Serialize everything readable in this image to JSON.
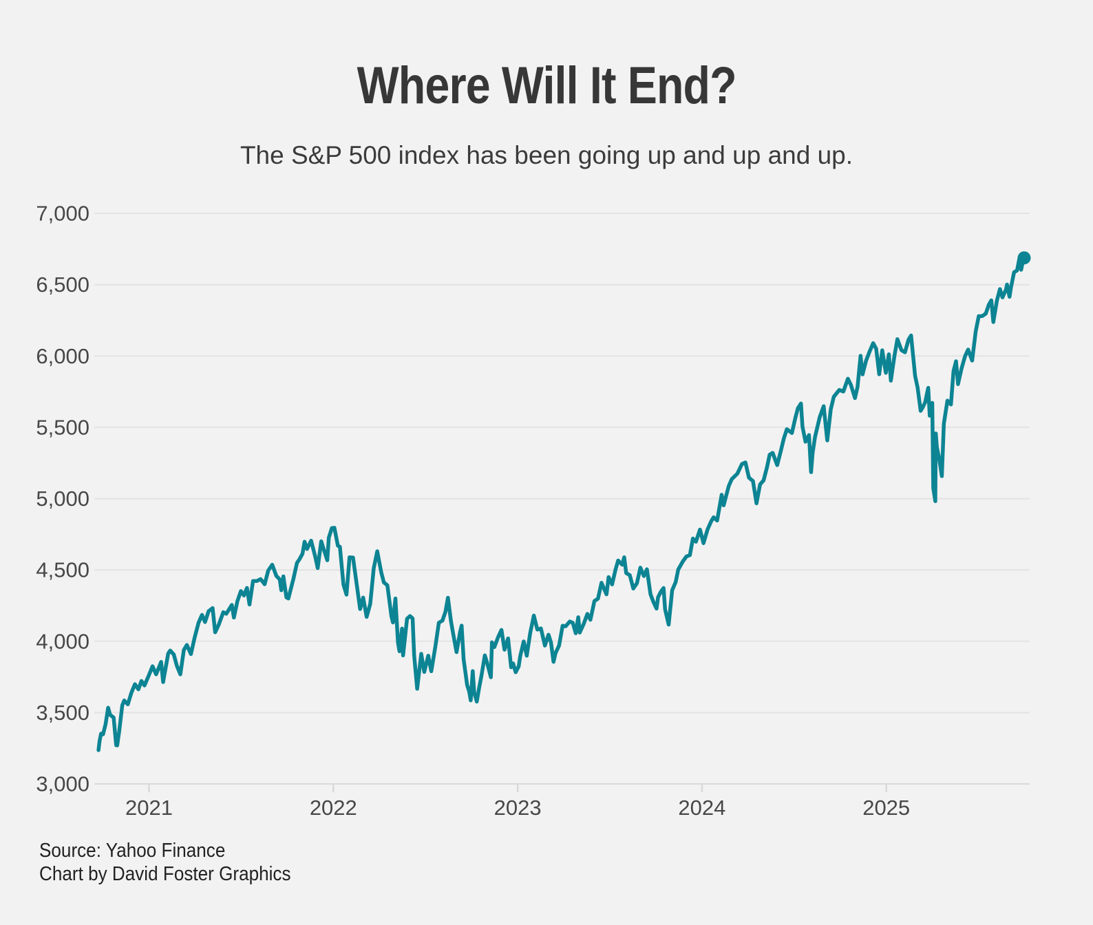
{
  "page": {
    "background_color": "#f2f2f2"
  },
  "header": {
    "title": "Where Will It End?",
    "subtitle": "The S&P 500 index has been going up and up and up."
  },
  "footer": {
    "source_line": "Source: Yahoo Finance",
    "credit_line": "Chart by David Foster Graphics"
  },
  "chart_data": {
    "type": "line",
    "title": "Where Will It End?",
    "subtitle": "The S&P 500 index has been going up and up and up.",
    "series_name": "S&P 500 index",
    "line_color": "#0d8493",
    "end_dot": true,
    "grid": true,
    "legend": false,
    "grid_color": "#e3e3e3",
    "axis_color": "#d9d9d9",
    "label_color": "#474747",
    "ylim": [
      3000,
      7000
    ],
    "x_range_dates": [
      "2020-09-23",
      "2025-10-01"
    ],
    "yticks": [
      {
        "value": 3000,
        "label": "3,000"
      },
      {
        "value": 3500,
        "label": "3,500"
      },
      {
        "value": 4000,
        "label": "4,000"
      },
      {
        "value": 4500,
        "label": "4,500"
      },
      {
        "value": 5000,
        "label": "5,000"
      },
      {
        "value": 5500,
        "label": "5,500"
      },
      {
        "value": 6000,
        "label": "6,000"
      },
      {
        "value": 6500,
        "label": "6,500"
      },
      {
        "value": 7000,
        "label": "7,000"
      }
    ],
    "xticks": [
      {
        "year": 2021,
        "label": "2021"
      },
      {
        "year": 2022,
        "label": "2022"
      },
      {
        "year": 2023,
        "label": "2023"
      },
      {
        "year": 2024,
        "label": "2024"
      },
      {
        "year": 2025,
        "label": "2025"
      }
    ],
    "points": [
      [
        "2020-09-23",
        3237
      ],
      [
        "2020-09-25",
        3298
      ],
      [
        "2020-09-28",
        3352
      ],
      [
        "2020-10-02",
        3348
      ],
      [
        "2020-10-07",
        3419
      ],
      [
        "2020-10-12",
        3534
      ],
      [
        "2020-10-16",
        3484
      ],
      [
        "2020-10-23",
        3465
      ],
      [
        "2020-10-28",
        3271
      ],
      [
        "2020-10-30",
        3270
      ],
      [
        "2020-11-03",
        3369
      ],
      [
        "2020-11-09",
        3550
      ],
      [
        "2020-11-13",
        3585
      ],
      [
        "2020-11-20",
        3558
      ],
      [
        "2020-11-27",
        3638
      ],
      [
        "2020-12-04",
        3699
      ],
      [
        "2020-12-11",
        3663
      ],
      [
        "2020-12-17",
        3722
      ],
      [
        "2020-12-23",
        3690
      ],
      [
        "2020-12-31",
        3756
      ],
      [
        "2021-01-08",
        3825
      ],
      [
        "2021-01-15",
        3768
      ],
      [
        "2021-01-25",
        3855
      ],
      [
        "2021-01-29",
        3714
      ],
      [
        "2021-02-08",
        3915
      ],
      [
        "2021-02-12",
        3935
      ],
      [
        "2021-02-19",
        3907
      ],
      [
        "2021-02-25",
        3829
      ],
      [
        "2021-03-04",
        3768
      ],
      [
        "2021-03-11",
        3939
      ],
      [
        "2021-03-17",
        3974
      ],
      [
        "2021-03-25",
        3910
      ],
      [
        "2021-04-01",
        4020
      ],
      [
        "2021-04-09",
        4129
      ],
      [
        "2021-04-16",
        4185
      ],
      [
        "2021-04-22",
        4135
      ],
      [
        "2021-04-29",
        4211
      ],
      [
        "2021-05-07",
        4233
      ],
      [
        "2021-05-12",
        4063
      ],
      [
        "2021-05-19",
        4116
      ],
      [
        "2021-05-28",
        4204
      ],
      [
        "2021-06-03",
        4193
      ],
      [
        "2021-06-14",
        4255
      ],
      [
        "2021-06-18",
        4166
      ],
      [
        "2021-06-25",
        4281
      ],
      [
        "2021-07-02",
        4352
      ],
      [
        "2021-07-08",
        4321
      ],
      [
        "2021-07-14",
        4374
      ],
      [
        "2021-07-19",
        4258
      ],
      [
        "2021-07-26",
        4422
      ],
      [
        "2021-08-03",
        4423
      ],
      [
        "2021-08-10",
        4436
      ],
      [
        "2021-08-18",
        4400
      ],
      [
        "2021-08-25",
        4496
      ],
      [
        "2021-09-02",
        4537
      ],
      [
        "2021-09-10",
        4459
      ],
      [
        "2021-09-17",
        4433
      ],
      [
        "2021-09-20",
        4358
      ],
      [
        "2021-09-24",
        4455
      ],
      [
        "2021-09-30",
        4308
      ],
      [
        "2021-10-04",
        4300
      ],
      [
        "2021-10-14",
        4438
      ],
      [
        "2021-10-21",
        4550
      ],
      [
        "2021-10-26",
        4575
      ],
      [
        "2021-11-01",
        4614
      ],
      [
        "2021-11-05",
        4698
      ],
      [
        "2021-11-10",
        4647
      ],
      [
        "2021-11-18",
        4705
      ],
      [
        "2021-11-26",
        4595
      ],
      [
        "2021-12-01",
        4513
      ],
      [
        "2021-12-08",
        4701
      ],
      [
        "2021-12-14",
        4634
      ],
      [
        "2021-12-20",
        4568
      ],
      [
        "2021-12-23",
        4726
      ],
      [
        "2021-12-29",
        4793
      ],
      [
        "2022-01-03",
        4796
      ],
      [
        "2022-01-10",
        4670
      ],
      [
        "2022-01-14",
        4663
      ],
      [
        "2022-01-21",
        4398
      ],
      [
        "2022-01-27",
        4327
      ],
      [
        "2022-02-02",
        4589
      ],
      [
        "2022-02-09",
        4587
      ],
      [
        "2022-02-17",
        4380
      ],
      [
        "2022-02-23",
        4226
      ],
      [
        "2022-03-01",
        4306
      ],
      [
        "2022-03-08",
        4171
      ],
      [
        "2022-03-15",
        4262
      ],
      [
        "2022-03-22",
        4512
      ],
      [
        "2022-03-29",
        4631
      ],
      [
        "2022-04-06",
        4481
      ],
      [
        "2022-04-11",
        4413
      ],
      [
        "2022-04-18",
        4392
      ],
      [
        "2022-04-26",
        4175
      ],
      [
        "2022-04-29",
        4132
      ],
      [
        "2022-05-04",
        4300
      ],
      [
        "2022-05-09",
        3991
      ],
      [
        "2022-05-12",
        3930
      ],
      [
        "2022-05-17",
        4089
      ],
      [
        "2022-05-19",
        3901
      ],
      [
        "2022-05-27",
        4158
      ],
      [
        "2022-06-02",
        4177
      ],
      [
        "2022-06-07",
        4160
      ],
      [
        "2022-06-10",
        3901
      ],
      [
        "2022-06-16",
        3667
      ],
      [
        "2022-06-24",
        3912
      ],
      [
        "2022-06-30",
        3785
      ],
      [
        "2022-07-08",
        3899
      ],
      [
        "2022-07-14",
        3790
      ],
      [
        "2022-07-22",
        3962
      ],
      [
        "2022-07-29",
        4130
      ],
      [
        "2022-08-05",
        4145
      ],
      [
        "2022-08-11",
        4207
      ],
      [
        "2022-08-16",
        4305
      ],
      [
        "2022-08-22",
        4138
      ],
      [
        "2022-08-26",
        4058
      ],
      [
        "2022-09-02",
        3924
      ],
      [
        "2022-09-09",
        4067
      ],
      [
        "2022-09-12",
        4110
      ],
      [
        "2022-09-16",
        3873
      ],
      [
        "2022-09-23",
        3693
      ],
      [
        "2022-09-27",
        3647
      ],
      [
        "2022-09-30",
        3586
      ],
      [
        "2022-10-04",
        3791
      ],
      [
        "2022-10-07",
        3640
      ],
      [
        "2022-10-12",
        3577
      ],
      [
        "2022-10-17",
        3678
      ],
      [
        "2022-10-21",
        3753
      ],
      [
        "2022-10-28",
        3901
      ],
      [
        "2022-11-01",
        3856
      ],
      [
        "2022-11-09",
        3748
      ],
      [
        "2022-11-11",
        3993
      ],
      [
        "2022-11-16",
        3959
      ],
      [
        "2022-11-23",
        4027
      ],
      [
        "2022-11-30",
        4080
      ],
      [
        "2022-12-06",
        3941
      ],
      [
        "2022-12-13",
        4020
      ],
      [
        "2022-12-19",
        3818
      ],
      [
        "2022-12-23",
        3845
      ],
      [
        "2022-12-28",
        3783
      ],
      [
        "2023-01-03",
        3824
      ],
      [
        "2023-01-06",
        3895
      ],
      [
        "2023-01-13",
        3999
      ],
      [
        "2023-01-19",
        3899
      ],
      [
        "2023-01-26",
        4060
      ],
      [
        "2023-02-02",
        4180
      ],
      [
        "2023-02-09",
        4082
      ],
      [
        "2023-02-16",
        4090
      ],
      [
        "2023-02-24",
        3970
      ],
      [
        "2023-03-03",
        4046
      ],
      [
        "2023-03-08",
        3992
      ],
      [
        "2023-03-13",
        3856
      ],
      [
        "2023-03-17",
        3917
      ],
      [
        "2023-03-24",
        3971
      ],
      [
        "2023-03-31",
        4109
      ],
      [
        "2023-04-06",
        4105
      ],
      [
        "2023-04-14",
        4138
      ],
      [
        "2023-04-20",
        4130
      ],
      [
        "2023-04-26",
        4056
      ],
      [
        "2023-05-01",
        4168
      ],
      [
        "2023-05-04",
        4061
      ],
      [
        "2023-05-12",
        4124
      ],
      [
        "2023-05-19",
        4192
      ],
      [
        "2023-05-25",
        4151
      ],
      [
        "2023-06-02",
        4282
      ],
      [
        "2023-06-09",
        4299
      ],
      [
        "2023-06-16",
        4410
      ],
      [
        "2023-06-26",
        4329
      ],
      [
        "2023-06-30",
        4450
      ],
      [
        "2023-07-07",
        4399
      ],
      [
        "2023-07-14",
        4505
      ],
      [
        "2023-07-19",
        4566
      ],
      [
        "2023-07-27",
        4537
      ],
      [
        "2023-07-31",
        4589
      ],
      [
        "2023-08-04",
        4478
      ],
      [
        "2023-08-11",
        4464
      ],
      [
        "2023-08-18",
        4370
      ],
      [
        "2023-08-25",
        4406
      ],
      [
        "2023-09-01",
        4516
      ],
      [
        "2023-09-08",
        4457
      ],
      [
        "2023-09-14",
        4505
      ],
      [
        "2023-09-21",
        4330
      ],
      [
        "2023-09-27",
        4274
      ],
      [
        "2023-10-03",
        4229
      ],
      [
        "2023-10-06",
        4309
      ],
      [
        "2023-10-12",
        4350
      ],
      [
        "2023-10-17",
        4373
      ],
      [
        "2023-10-20",
        4224
      ],
      [
        "2023-10-27",
        4117
      ],
      [
        "2023-11-03",
        4358
      ],
      [
        "2023-11-10",
        4415
      ],
      [
        "2023-11-15",
        4503
      ],
      [
        "2023-11-24",
        4559
      ],
      [
        "2023-12-01",
        4594
      ],
      [
        "2023-12-08",
        4604
      ],
      [
        "2023-12-14",
        4720
      ],
      [
        "2023-12-20",
        4698
      ],
      [
        "2023-12-28",
        4783
      ],
      [
        "2024-01-04",
        4688
      ],
      [
        "2024-01-12",
        4784
      ],
      [
        "2024-01-19",
        4840
      ],
      [
        "2024-01-24",
        4869
      ],
      [
        "2024-01-31",
        4846
      ],
      [
        "2024-02-09",
        5027
      ],
      [
        "2024-02-13",
        4953
      ],
      [
        "2024-02-23",
        5089
      ],
      [
        "2024-03-01",
        5137
      ],
      [
        "2024-03-12",
        5175
      ],
      [
        "2024-03-21",
        5242
      ],
      [
        "2024-03-28",
        5254
      ],
      [
        "2024-04-04",
        5147
      ],
      [
        "2024-04-12",
        5123
      ],
      [
        "2024-04-19",
        4967
      ],
      [
        "2024-04-26",
        5100
      ],
      [
        "2024-05-03",
        5128
      ],
      [
        "2024-05-10",
        5223
      ],
      [
        "2024-05-15",
        5308
      ],
      [
        "2024-05-21",
        5321
      ],
      [
        "2024-05-30",
        5235
      ],
      [
        "2024-06-07",
        5347
      ],
      [
        "2024-06-12",
        5421
      ],
      [
        "2024-06-18",
        5487
      ],
      [
        "2024-06-28",
        5460
      ],
      [
        "2024-07-05",
        5567
      ],
      [
        "2024-07-10",
        5634
      ],
      [
        "2024-07-16",
        5667
      ],
      [
        "2024-07-19",
        5505
      ],
      [
        "2024-07-25",
        5399
      ],
      [
        "2024-08-01",
        5446
      ],
      [
        "2024-08-05",
        5186
      ],
      [
        "2024-08-08",
        5319
      ],
      [
        "2024-08-13",
        5434
      ],
      [
        "2024-08-22",
        5571
      ],
      [
        "2024-08-30",
        5648
      ],
      [
        "2024-09-06",
        5408
      ],
      [
        "2024-09-13",
        5626
      ],
      [
        "2024-09-19",
        5714
      ],
      [
        "2024-09-26",
        5745
      ],
      [
        "2024-09-30",
        5762
      ],
      [
        "2024-10-08",
        5751
      ],
      [
        "2024-10-17",
        5841
      ],
      [
        "2024-10-23",
        5797
      ],
      [
        "2024-10-31",
        5705
      ],
      [
        "2024-11-05",
        5783
      ],
      [
        "2024-11-11",
        6001
      ],
      [
        "2024-11-15",
        5871
      ],
      [
        "2024-11-22",
        5969
      ],
      [
        "2024-11-29",
        6032
      ],
      [
        "2024-12-06",
        6090
      ],
      [
        "2024-12-12",
        6051
      ],
      [
        "2024-12-18",
        5872
      ],
      [
        "2024-12-24",
        6040
      ],
      [
        "2024-12-31",
        5882
      ],
      [
        "2025-01-06",
        6012
      ],
      [
        "2025-01-10",
        5827
      ],
      [
        "2025-01-17",
        5997
      ],
      [
        "2025-01-23",
        6118
      ],
      [
        "2025-01-31",
        6041
      ],
      [
        "2025-02-07",
        6026
      ],
      [
        "2025-02-14",
        6115
      ],
      [
        "2025-02-19",
        6144
      ],
      [
        "2025-02-27",
        5862
      ],
      [
        "2025-03-04",
        5778
      ],
      [
        "2025-03-10",
        5615
      ],
      [
        "2025-03-14",
        5639
      ],
      [
        "2025-03-19",
        5676
      ],
      [
        "2025-03-25",
        5777
      ],
      [
        "2025-03-28",
        5581
      ],
      [
        "2025-04-02",
        5671
      ],
      [
        "2025-04-04",
        5074
      ],
      [
        "2025-04-08",
        4982
      ],
      [
        "2025-04-09",
        5457
      ],
      [
        "2025-04-11",
        5363
      ],
      [
        "2025-04-16",
        5276
      ],
      [
        "2025-04-21",
        5158
      ],
      [
        "2025-04-25",
        5525
      ],
      [
        "2025-05-02",
        5687
      ],
      [
        "2025-05-09",
        5660
      ],
      [
        "2025-05-14",
        5892
      ],
      [
        "2025-05-19",
        5963
      ],
      [
        "2025-05-23",
        5803
      ],
      [
        "2025-05-30",
        5912
      ],
      [
        "2025-06-06",
        6000
      ],
      [
        "2025-06-12",
        6045
      ],
      [
        "2025-06-20",
        5968
      ],
      [
        "2025-06-27",
        6173
      ],
      [
        "2025-07-03",
        6279
      ],
      [
        "2025-07-10",
        6280
      ],
      [
        "2025-07-17",
        6297
      ],
      [
        "2025-07-23",
        6359
      ],
      [
        "2025-07-28",
        6390
      ],
      [
        "2025-08-01",
        6238
      ],
      [
        "2025-08-08",
        6389
      ],
      [
        "2025-08-14",
        6469
      ],
      [
        "2025-08-19",
        6411
      ],
      [
        "2025-08-26",
        6466
      ],
      [
        "2025-08-28",
        6501
      ],
      [
        "2025-09-02",
        6415
      ],
      [
        "2025-09-05",
        6482
      ],
      [
        "2025-09-11",
        6587
      ],
      [
        "2025-09-17",
        6600
      ],
      [
        "2025-09-22",
        6693
      ],
      [
        "2025-09-25",
        6605
      ],
      [
        "2025-09-30",
        6688
      ],
      [
        "2025-10-01",
        6688
      ]
    ]
  }
}
